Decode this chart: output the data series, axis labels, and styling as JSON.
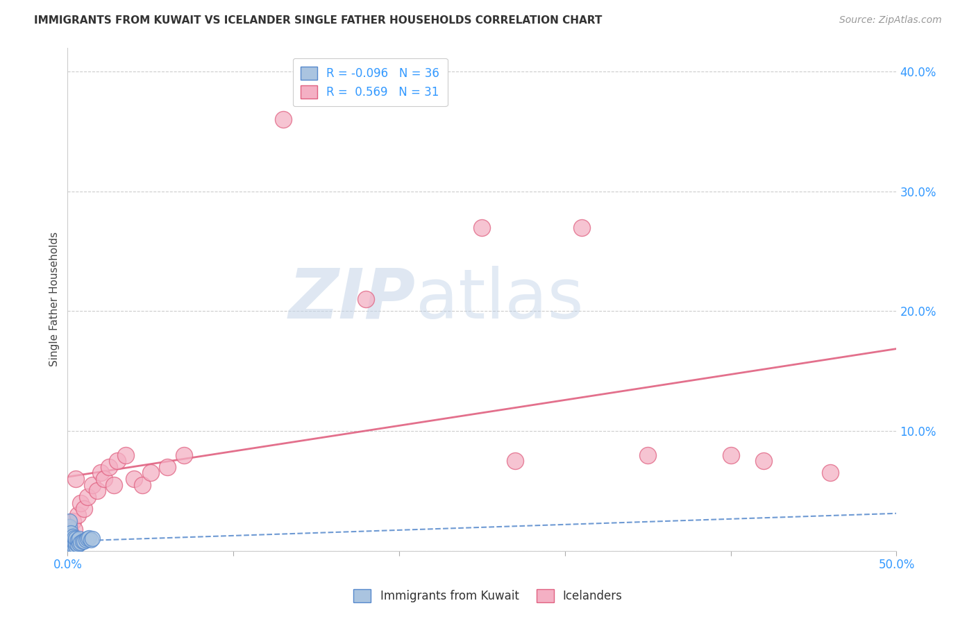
{
  "title": "IMMIGRANTS FROM KUWAIT VS ICELANDER SINGLE FATHER HOUSEHOLDS CORRELATION CHART",
  "source": "Source: ZipAtlas.com",
  "ylabel": "Single Father Households",
  "xlim": [
    0.0,
    0.5
  ],
  "ylim": [
    0.0,
    0.42
  ],
  "xticks": [
    0.0,
    0.1,
    0.2,
    0.3,
    0.4,
    0.5
  ],
  "yticks": [
    0.0,
    0.1,
    0.2,
    0.3,
    0.4
  ],
  "ytick_labels": [
    "",
    "10.0%",
    "20.0%",
    "30.0%",
    "40.0%"
  ],
  "xtick_labels": [
    "0.0%",
    "",
    "",
    "",
    "",
    "50.0%"
  ],
  "kuwait_color": "#aac4e0",
  "kuwait_edge_color": "#5588cc",
  "icelander_color": "#f4b0c4",
  "icelander_edge_color": "#e06080",
  "kuwait_r": -0.096,
  "kuwait_n": 36,
  "icelander_r": 0.569,
  "icelander_n": 31,
  "kuwait_x": [
    0.001,
    0.001,
    0.001,
    0.001,
    0.001,
    0.001,
    0.001,
    0.001,
    0.001,
    0.002,
    0.002,
    0.002,
    0.002,
    0.002,
    0.003,
    0.003,
    0.003,
    0.003,
    0.004,
    0.004,
    0.004,
    0.005,
    0.005,
    0.005,
    0.006,
    0.006,
    0.007,
    0.007,
    0.008,
    0.009,
    0.01,
    0.011,
    0.012,
    0.013,
    0.014,
    0.015
  ],
  "kuwait_y": [
    0.0,
    0.002,
    0.004,
    0.006,
    0.008,
    0.01,
    0.015,
    0.02,
    0.025,
    0.0,
    0.003,
    0.006,
    0.01,
    0.015,
    0.002,
    0.005,
    0.008,
    0.012,
    0.003,
    0.007,
    0.011,
    0.004,
    0.007,
    0.01,
    0.005,
    0.009,
    0.006,
    0.01,
    0.007,
    0.008,
    0.008,
    0.009,
    0.01,
    0.011,
    0.009,
    0.01
  ],
  "icelander_x": [
    0.001,
    0.002,
    0.003,
    0.004,
    0.005,
    0.006,
    0.008,
    0.01,
    0.012,
    0.015,
    0.018,
    0.02,
    0.022,
    0.025,
    0.028,
    0.03,
    0.035,
    0.04,
    0.045,
    0.05,
    0.06,
    0.07,
    0.13,
    0.18,
    0.25,
    0.27,
    0.31,
    0.35,
    0.4,
    0.42,
    0.46
  ],
  "icelander_y": [
    0.02,
    0.015,
    0.025,
    0.018,
    0.06,
    0.03,
    0.04,
    0.035,
    0.045,
    0.055,
    0.05,
    0.065,
    0.06,
    0.07,
    0.055,
    0.075,
    0.08,
    0.06,
    0.055,
    0.065,
    0.07,
    0.08,
    0.36,
    0.21,
    0.27,
    0.075,
    0.27,
    0.08,
    0.08,
    0.075,
    0.065
  ],
  "watermark_zip": "ZIP",
  "watermark_atlas": "atlas",
  "background_color": "#ffffff",
  "grid_color": "#cccccc"
}
